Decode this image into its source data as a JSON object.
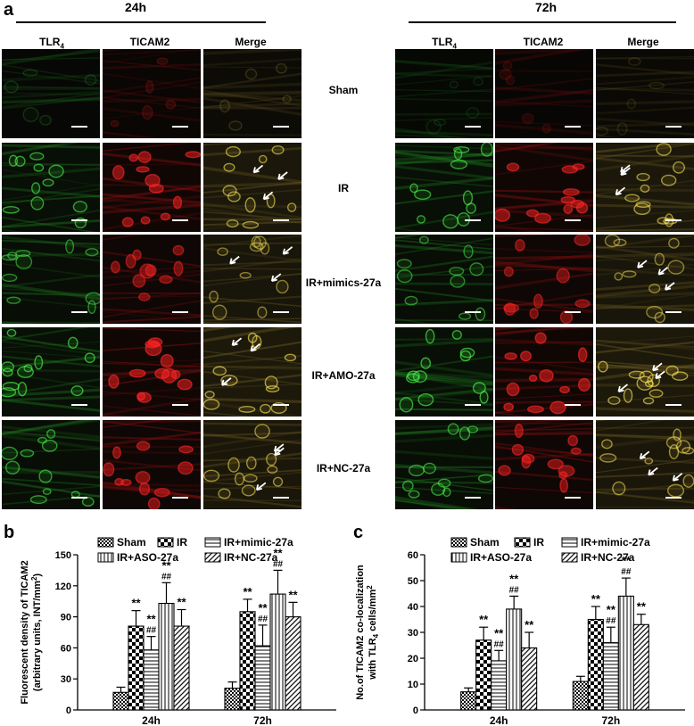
{
  "panel_a": {
    "letter": "a",
    "time_labels": [
      "24h",
      "72h"
    ],
    "column_labels": [
      "TLR",
      "TICAM2",
      "Merge"
    ],
    "column_subscript": "4",
    "row_labels": [
      "Sham",
      "IR",
      "IR+mimics-27a",
      "IR+AMO-27a",
      "IR+NC-27a"
    ],
    "channel_colors": {
      "tlr": "#1f7a1f",
      "ticam": "#8a1010",
      "merge": "#6b5a22",
      "arrow": "#ffffff"
    }
  },
  "panel_b": {
    "letter": "b"
  },
  "panel_c": {
    "letter": "c"
  },
  "chart_data": [
    {
      "type": "bar",
      "ylabel_line1": "Fluorescent density of TICAM2",
      "ylabel_line2": "(arbitrary units, INT/mm",
      "ylabel_sup": "2",
      "ylabel_end": ")",
      "categories": [
        "24h",
        "72h"
      ],
      "ylim": [
        0,
        150
      ],
      "yticks": [
        0,
        30,
        60,
        90,
        120,
        150
      ],
      "legend": [
        "Sham",
        "IR",
        "IR+mimic-27a",
        "IR+ASO-27a",
        "IR+NC-27a"
      ],
      "series": [
        {
          "name": "Sham",
          "values": [
            17,
            21
          ],
          "errors": [
            5,
            6
          ],
          "annotations": [
            "",
            ""
          ]
        },
        {
          "name": "IR",
          "values": [
            81,
            95
          ],
          "errors": [
            15,
            12
          ],
          "annotations": [
            "**",
            "**"
          ]
        },
        {
          "name": "IR+mimic-27a",
          "values": [
            58,
            62
          ],
          "errors": [
            13,
            20
          ],
          "annotations": [
            "**\n##",
            "**\n##"
          ]
        },
        {
          "name": "IR+ASO-27a",
          "values": [
            103,
            112
          ],
          "errors": [
            20,
            23
          ],
          "annotations": [
            "**\n##",
            "**\n##"
          ]
        },
        {
          "name": "IR+NC-27a",
          "values": [
            81,
            90
          ],
          "errors": [
            16,
            14
          ],
          "annotations": [
            "**",
            "**"
          ]
        }
      ]
    },
    {
      "type": "bar",
      "ylabel_line1": "No.of TICAM2 co-localization",
      "ylabel_line2": "with TLR",
      "ylabel_sub": "4",
      "ylabel_end": " cells/mm",
      "ylabel_sup": "2",
      "categories": [
        "24h",
        "72h"
      ],
      "ylim": [
        0,
        60
      ],
      "yticks": [
        0,
        10,
        20,
        30,
        40,
        50,
        60
      ],
      "legend": [
        "Sham",
        "IR",
        "IR+mimic-27a",
        "IR+ASO-27a",
        "IR+NC-27a"
      ],
      "series": [
        {
          "name": "Sham",
          "values": [
            7,
            11
          ],
          "errors": [
            1.5,
            2
          ],
          "annotations": [
            "",
            ""
          ]
        },
        {
          "name": "IR",
          "values": [
            27,
            35
          ],
          "errors": [
            5,
            5
          ],
          "annotations": [
            "**",
            "**"
          ]
        },
        {
          "name": "IR+mimic-27a",
          "values": [
            19,
            26
          ],
          "errors": [
            4,
            6
          ],
          "annotations": [
            "**\n##",
            "**\n##"
          ]
        },
        {
          "name": "IR+ASO-27a",
          "values": [
            39,
            44
          ],
          "errors": [
            5,
            7
          ],
          "annotations": [
            "**\n##",
            "**\n##"
          ]
        },
        {
          "name": "IR+NC-27a",
          "values": [
            24,
            33
          ],
          "errors": [
            6,
            4
          ],
          "annotations": [
            "**",
            "**"
          ]
        }
      ]
    }
  ]
}
